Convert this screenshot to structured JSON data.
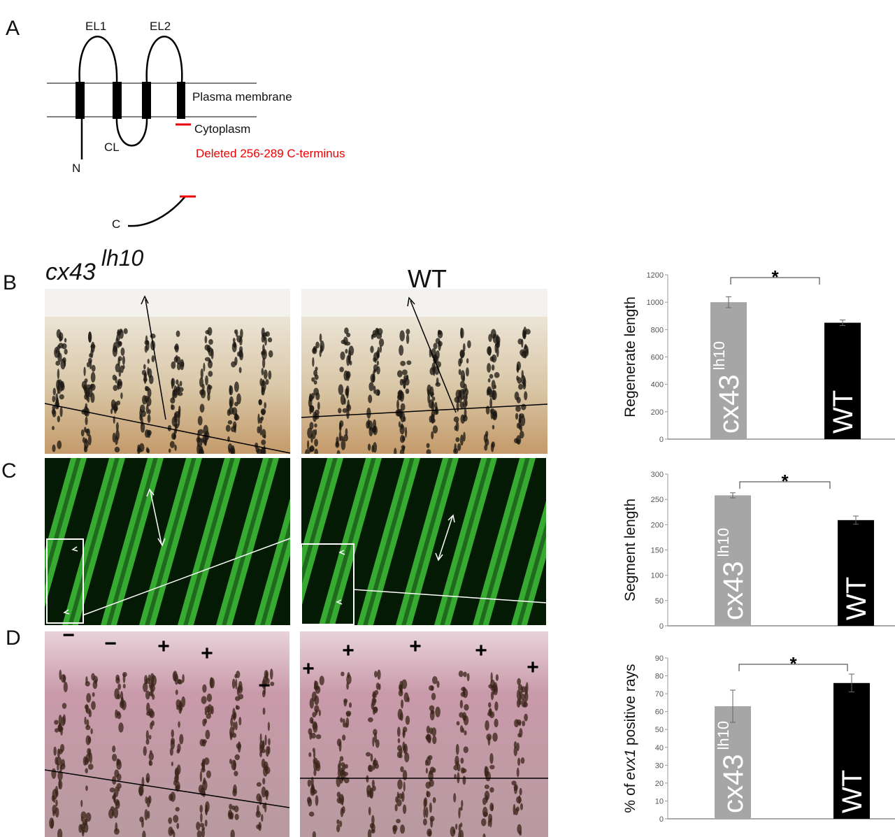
{
  "panels": {
    "a": "A",
    "b": "B",
    "c": "C",
    "d": "D"
  },
  "diagram": {
    "loops": [
      "EL1",
      "EL2"
    ],
    "cytoplasmic_loop": "CL",
    "n_terminus": "N",
    "c_terminus": "C",
    "membrane": "Plasma membrane",
    "cytoplasm": "Cytoplasm",
    "deletion": "Deleted 256-289 C-terminus"
  },
  "image_titles": {
    "mutant": "cx43",
    "mutant_superscript": "lh10",
    "wild_type": "WT"
  },
  "d_markers": {
    "mutant": [
      "−",
      "−",
      "+",
      "+",
      "−"
    ],
    "wild_type": [
      "+",
      "+",
      "+",
      "+",
      "+"
    ]
  },
  "chart_data": [
    {
      "type": "bar",
      "ylabel": "Regenerate length",
      "categories": [
        "cx43",
        "WT"
      ],
      "category_superscripts": [
        "lh10",
        null
      ],
      "values": [
        1000,
        850
      ],
      "errors": [
        40,
        20
      ],
      "colors": [
        "#a6a6a6",
        "#000000"
      ],
      "ylim": [
        0,
        1200
      ],
      "yticks": [
        0,
        200,
        400,
        600,
        800,
        1000,
        1200
      ],
      "significance": "*"
    },
    {
      "type": "bar",
      "ylabel": "Segment length",
      "categories": [
        "cx43",
        "WT"
      ],
      "category_superscripts": [
        "lh10",
        null
      ],
      "values": [
        258,
        209
      ],
      "errors": [
        5,
        8
      ],
      "colors": [
        "#a6a6a6",
        "#000000"
      ],
      "ylim": [
        0,
        300
      ],
      "yticks": [
        0,
        50,
        100,
        150,
        200,
        250,
        300
      ],
      "significance": "*"
    },
    {
      "type": "bar",
      "ylabel_parts": [
        "% of",
        "evx1",
        "positive rays"
      ],
      "categories": [
        "cx43",
        "WT"
      ],
      "category_superscripts": [
        "lh10",
        null
      ],
      "values": [
        63,
        76
      ],
      "errors": [
        9,
        5
      ],
      "colors": [
        "#a6a6a6",
        "#000000"
      ],
      "ylim": [
        0,
        90
      ],
      "yticks": [
        0,
        10,
        20,
        30,
        40,
        50,
        60,
        70,
        80,
        90
      ],
      "significance": "*"
    }
  ]
}
